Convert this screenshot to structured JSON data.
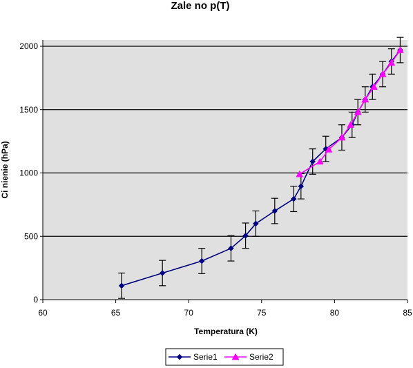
{
  "chart_data": {
    "type": "line",
    "title": "Zale  no      p(T)",
    "xlabel": "Temperatura (K)",
    "ylabel": "Ci  nienie (hPa)",
    "xlim": [
      60,
      85
    ],
    "ylim": [
      0,
      2000
    ],
    "x_ticks": [
      "60",
      "65",
      "70",
      "75",
      "80",
      "85"
    ],
    "y_ticks": [
      "0",
      "500",
      "1000",
      "1500",
      "2000"
    ],
    "grid": "horizontal",
    "plot_background": "#e0e0e0",
    "legend_position": "bottom",
    "series": [
      {
        "name": "Serie1",
        "color": "#000080",
        "marker": "diamond",
        "error_bar": 100,
        "points": [
          [
            65.4,
            110
          ],
          [
            68.2,
            210
          ],
          [
            70.9,
            305
          ],
          [
            72.9,
            405
          ],
          [
            73.9,
            505
          ],
          [
            74.6,
            600
          ],
          [
            75.9,
            700
          ],
          [
            77.2,
            795
          ],
          [
            77.7,
            895
          ],
          [
            78.5,
            1090
          ],
          [
            79.4,
            1190
          ],
          [
            80.5,
            1280
          ],
          [
            81.2,
            1380
          ],
          [
            81.6,
            1480
          ],
          [
            82.1,
            1580
          ],
          [
            82.6,
            1680
          ],
          [
            83.3,
            1780
          ],
          [
            83.9,
            1880
          ],
          [
            84.5,
            1970
          ]
        ]
      },
      {
        "name": "Serie2",
        "color": "#ff00ff",
        "marker": "triangle",
        "error_bar": 0,
        "points": [
          [
            77.6,
            990
          ],
          [
            79.0,
            1090
          ],
          [
            79.6,
            1185
          ],
          [
            80.5,
            1280
          ],
          [
            81.1,
            1380
          ],
          [
            81.6,
            1480
          ],
          [
            82.1,
            1580
          ],
          [
            82.7,
            1680
          ],
          [
            83.3,
            1780
          ],
          [
            83.9,
            1870
          ],
          [
            84.5,
            1970
          ]
        ]
      }
    ]
  }
}
